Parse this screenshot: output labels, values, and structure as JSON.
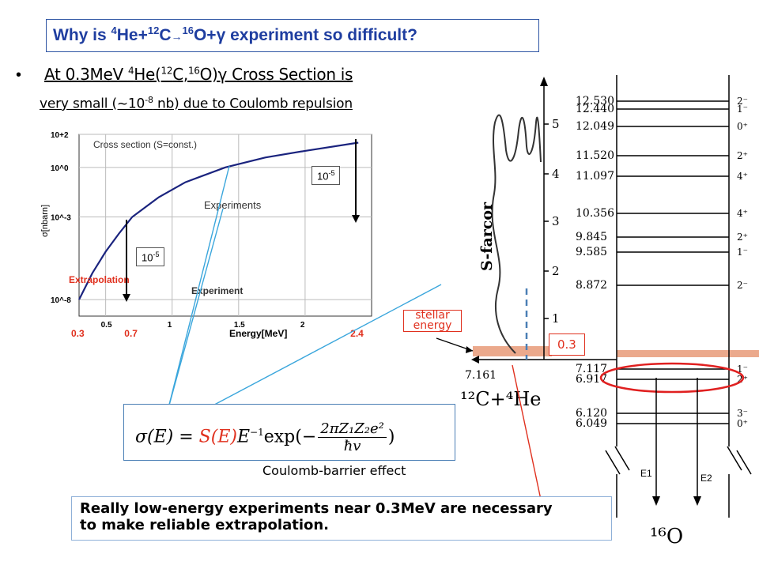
{
  "title": {
    "p1": "Why is ",
    "sup1": "4",
    "p2": "He+",
    "sup2": "12",
    "p3": "C",
    "arrow": "→",
    "sup3": "16",
    "p4": "O+γ experiment so difficult?"
  },
  "bullet": {
    "marker": "•",
    "l1a": "At 0.3MeV ",
    "l1sup1": "4",
    "l1b": "He(",
    "l1sup2": "12",
    "l1c": "C,",
    "l1sup3": "16",
    "l1d": "O)γ Cross Section is",
    "l2a": "very small (~10",
    "l2sup": "-8",
    "l2b": " nb)  due to Coulomb repulsion"
  },
  "chart_data": {
    "type": "line",
    "title": "Cross section (S=const.)",
    "xlabel": "Energy[MeV]",
    "ylabel": "σ[nbarn]",
    "xlim": [
      0.3,
      2.5
    ],
    "ylim_log10": [
      -9,
      2
    ],
    "xticks": [
      0.5,
      1,
      1.5,
      2
    ],
    "xtick_labels": [
      "0.5",
      "1",
      "1.5",
      "2"
    ],
    "yticks_log10": [
      2,
      0,
      -3,
      -8
    ],
    "ytick_labels": [
      "10+2",
      "10^0",
      "10^-3",
      "10^-8"
    ],
    "highlight_x": [
      "0.3",
      "0.7",
      "2.4"
    ],
    "series": [
      {
        "x": [
          0.3,
          0.4,
          0.5,
          0.6,
          0.7,
          0.9,
          1.1,
          1.4,
          1.7,
          2.0,
          2.4
        ],
        "log10_y": [
          -8.0,
          -6.4,
          -5.1,
          -4.0,
          -3.0,
          -1.8,
          -0.9,
          0.0,
          0.6,
          1.0,
          1.5
        ]
      }
    ],
    "annotations": {
      "box_low": "10",
      "box_low_sup": "-5",
      "box_high": "10",
      "box_high_sup": "-5",
      "extrapolation": "Extrapolation",
      "experiment": "Experiment",
      "experiments": "Experiments"
    }
  },
  "formula": {
    "lhs": "σ(E) = ",
    "s": "S(E)",
    "rest": "E",
    "rest_sup": "−1",
    "exp": "exp(−",
    "num": "2πZ₁Z₂e²",
    "den": "ħv",
    "close": ")"
  },
  "coulomb_label": "Coulomb-barrier effect",
  "stellar_label": "stellar energy",
  "box_03": "0.3",
  "bottom_text": {
    "line1": "Really low-energy experiments near 0.3MeV are necessary",
    "line2": "to make reliable extrapolation."
  },
  "level_diagram": {
    "energies": [
      "12.530",
      "12.440",
      "12.049",
      "11.520",
      "11.097",
      "10.356",
      "9.845",
      "9.585",
      "8.872",
      "7.117",
      "6.917",
      "6.120",
      "6.049"
    ],
    "spins": [
      "2⁻",
      "1⁻",
      "0⁺",
      "2⁺",
      "4⁺",
      "4⁺",
      "2⁺",
      "1⁻",
      "2⁻",
      "1⁻",
      "2⁺",
      "3⁻",
      "0⁺"
    ],
    "threshold": "7.161",
    "axis_ticks": [
      "5",
      "4",
      "3",
      "2",
      "1"
    ],
    "axis_label": "S-farcor",
    "reaction": "¹²C+⁴He",
    "nucleus": "¹⁶O",
    "e1": "E1",
    "e2": "E2"
  },
  "colors": {
    "title": "#1f3ea0",
    "red": "#e0301e",
    "blue_line": "#3aa6dc",
    "curve": "#1a237e",
    "band": "#e9a07f",
    "dashed": "#4a7fb5"
  }
}
